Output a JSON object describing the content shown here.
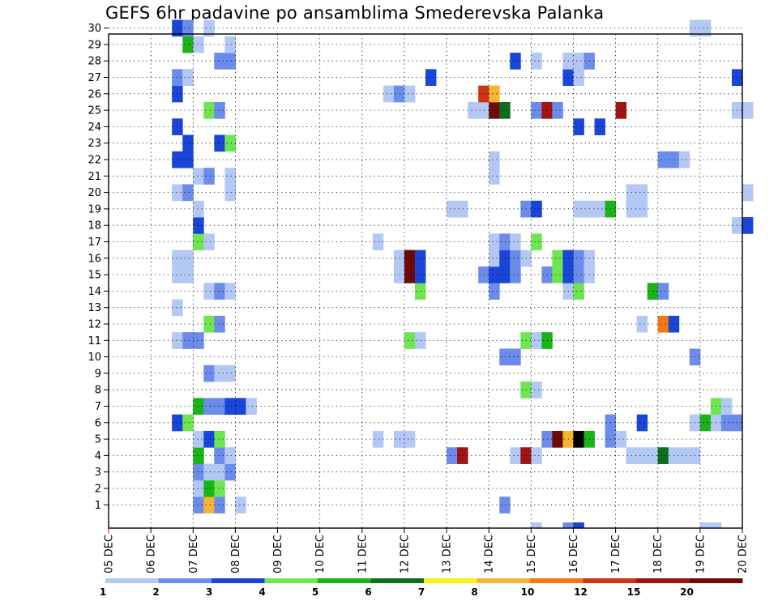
{
  "chart_data": {
    "type": "heatmap",
    "title": "GEFS 6hr padavine po ansamblima Smederevska Palanka",
    "x_tick_labels": [
      "05 DEC",
      "06 DEC",
      "07 DEC",
      "08 DEC",
      "09 DEC",
      "10 DEC",
      "11 DEC",
      "12 DEC",
      "13 DEC",
      "14 DEC",
      "15 DEC",
      "16 DEC",
      "17 DEC",
      "18 DEC",
      "19 DEC",
      "20 DEC"
    ],
    "x_range_days": [
      0,
      15
    ],
    "y_tick_labels": [
      1,
      2,
      3,
      4,
      5,
      6,
      7,
      8,
      9,
      10,
      11,
      12,
      13,
      14,
      15,
      16,
      17,
      18,
      19,
      20,
      21,
      22,
      23,
      24,
      25,
      26,
      27,
      28,
      29,
      30
    ],
    "grid": true,
    "colorbar": {
      "labels": [
        "1",
        "2",
        "3",
        "4",
        "5",
        "6",
        "7",
        "8",
        "10",
        "12",
        "15",
        "20"
      ],
      "colors": [
        "#b4c8f5",
        "#6c8cec",
        "#1a46d8",
        "#6ee650",
        "#18b418",
        "#0a6e1a",
        "#f5f514",
        "#f5b432",
        "#f57814",
        "#d23214",
        "#a01414",
        "#6e0a0a"
      ]
    },
    "cells": [
      [
        1,
        2.0,
        2
      ],
      [
        1,
        2.25,
        8
      ],
      [
        1,
        2.5,
        2
      ],
      [
        1,
        3.0,
        1
      ],
      [
        1,
        9.25,
        2
      ],
      [
        2,
        2.0,
        1
      ],
      [
        2,
        2.25,
        5
      ],
      [
        2,
        2.5,
        4
      ],
      [
        3,
        2.0,
        2
      ],
      [
        3,
        2.25,
        1
      ],
      [
        3,
        2.5,
        1
      ],
      [
        3,
        2.75,
        2
      ],
      [
        4,
        2.0,
        5
      ],
      [
        4,
        2.5,
        2
      ],
      [
        4,
        2.75,
        1
      ],
      [
        4,
        8.0,
        2
      ],
      [
        4,
        8.25,
        11
      ],
      [
        4,
        9.5,
        1
      ],
      [
        4,
        9.75,
        11
      ],
      [
        4,
        10.0,
        1
      ],
      [
        4,
        12.25,
        1
      ],
      [
        4,
        12.5,
        1
      ],
      [
        4,
        12.75,
        1
      ],
      [
        4,
        13.0,
        6
      ],
      [
        4,
        13.25,
        1
      ],
      [
        4,
        13.5,
        1
      ],
      [
        4,
        13.75,
        1
      ],
      [
        5,
        2.0,
        1
      ],
      [
        5,
        2.25,
        3
      ],
      [
        5,
        2.5,
        4
      ],
      [
        5,
        6.25,
        1
      ],
      [
        5,
        6.75,
        1
      ],
      [
        5,
        7.0,
        1
      ],
      [
        5,
        10.25,
        2
      ],
      [
        5,
        10.5,
        12
      ],
      [
        5,
        10.75,
        8
      ],
      [
        5,
        11.0,
        13
      ],
      [
        5,
        11.25,
        5
      ],
      [
        5,
        11.75,
        2
      ],
      [
        5,
        12.0,
        1
      ],
      [
        6,
        1.5,
        3
      ],
      [
        6,
        1.75,
        4
      ],
      [
        6,
        11.75,
        2
      ],
      [
        6,
        12.5,
        3
      ],
      [
        6,
        13.75,
        1
      ],
      [
        6,
        14.0,
        5
      ],
      [
        6,
        14.25,
        1
      ],
      [
        6,
        14.5,
        2
      ],
      [
        6,
        14.75,
        2
      ],
      [
        7,
        2.0,
        5
      ],
      [
        7,
        2.25,
        2
      ],
      [
        7,
        2.5,
        2
      ],
      [
        7,
        2.75,
        3
      ],
      [
        7,
        3.0,
        3
      ],
      [
        7,
        3.25,
        1
      ],
      [
        7,
        14.25,
        4
      ],
      [
        7,
        14.5,
        1
      ],
      [
        8,
        9.75,
        4
      ],
      [
        8,
        10.0,
        1
      ],
      [
        9,
        2.25,
        2
      ],
      [
        9,
        2.5,
        1
      ],
      [
        9,
        2.75,
        1
      ],
      [
        10,
        9.25,
        2
      ],
      [
        10,
        9.5,
        2
      ],
      [
        10,
        13.75,
        2
      ],
      [
        11,
        1.5,
        1
      ],
      [
        11,
        1.75,
        2
      ],
      [
        11,
        2.0,
        2
      ],
      [
        11,
        7.0,
        4
      ],
      [
        11,
        7.25,
        1
      ],
      [
        11,
        9.75,
        4
      ],
      [
        11,
        10.0,
        1
      ],
      [
        11,
        10.25,
        5
      ],
      [
        12,
        2.25,
        4
      ],
      [
        12,
        2.5,
        2
      ],
      [
        12,
        12.5,
        1
      ],
      [
        12,
        13.0,
        9
      ],
      [
        12,
        13.25,
        3
      ],
      [
        13,
        1.5,
        1
      ],
      [
        14,
        2.25,
        1
      ],
      [
        14,
        2.5,
        2
      ],
      [
        14,
        2.75,
        1
      ],
      [
        14,
        7.25,
        4
      ],
      [
        14,
        9.0,
        2
      ],
      [
        14,
        10.75,
        1
      ],
      [
        14,
        11.0,
        4
      ],
      [
        14,
        12.75,
        5
      ],
      [
        14,
        13.0,
        2
      ],
      [
        15,
        1.5,
        1
      ],
      [
        15,
        1.75,
        1
      ],
      [
        15,
        6.75,
        1
      ],
      [
        15,
        7.0,
        12
      ],
      [
        15,
        7.25,
        3
      ],
      [
        15,
        8.75,
        2
      ],
      [
        15,
        9.0,
        3
      ],
      [
        15,
        9.25,
        3
      ],
      [
        15,
        9.5,
        2
      ],
      [
        15,
        10.25,
        2
      ],
      [
        15,
        10.5,
        4
      ],
      [
        15,
        10.75,
        3
      ],
      [
        15,
        11.0,
        2
      ],
      [
        15,
        11.25,
        1
      ],
      [
        16,
        1.5,
        1
      ],
      [
        16,
        1.75,
        1
      ],
      [
        16,
        6.75,
        1
      ],
      [
        16,
        7.0,
        12
      ],
      [
        16,
        7.25,
        3
      ],
      [
        16,
        9.0,
        1
      ],
      [
        16,
        9.25,
        3
      ],
      [
        16,
        9.5,
        2
      ],
      [
        16,
        9.75,
        1
      ],
      [
        16,
        10.5,
        4
      ],
      [
        16,
        10.75,
        3
      ],
      [
        16,
        11.0,
        2
      ],
      [
        16,
        11.25,
        1
      ],
      [
        17,
        2.0,
        4
      ],
      [
        17,
        2.25,
        1
      ],
      [
        17,
        6.25,
        1
      ],
      [
        17,
        9.0,
        1
      ],
      [
        17,
        9.25,
        2
      ],
      [
        17,
        9.5,
        1
      ],
      [
        17,
        10.0,
        4
      ],
      [
        18,
        2.0,
        3
      ],
      [
        18,
        14.75,
        1
      ],
      [
        18,
        15.0,
        3
      ],
      [
        19,
        2.0,
        1
      ],
      [
        19,
        8.0,
        1
      ],
      [
        19,
        8.25,
        1
      ],
      [
        19,
        9.75,
        2
      ],
      [
        19,
        10.0,
        3
      ],
      [
        19,
        11.0,
        1
      ],
      [
        19,
        11.25,
        1
      ],
      [
        19,
        11.5,
        1
      ],
      [
        19,
        11.75,
        5
      ],
      [
        19,
        12.25,
        1
      ],
      [
        19,
        12.5,
        1
      ],
      [
        20,
        1.5,
        1
      ],
      [
        20,
        1.75,
        2
      ],
      [
        20,
        2.75,
        1
      ],
      [
        20,
        12.25,
        1
      ],
      [
        20,
        12.5,
        1
      ],
      [
        20,
        15.0,
        1
      ],
      [
        21,
        2.0,
        1
      ],
      [
        21,
        2.25,
        2
      ],
      [
        21,
        2.75,
        1
      ],
      [
        21,
        9.0,
        1
      ],
      [
        22,
        1.5,
        3
      ],
      [
        22,
        1.75,
        3
      ],
      [
        22,
        9.0,
        1
      ],
      [
        22,
        13.0,
        2
      ],
      [
        22,
        13.25,
        2
      ],
      [
        22,
        13.5,
        1
      ],
      [
        23,
        1.75,
        3
      ],
      [
        23,
        2.5,
        3
      ],
      [
        23,
        2.75,
        4
      ],
      [
        24,
        1.5,
        3
      ],
      [
        24,
        11.0,
        3
      ],
      [
        24,
        11.5,
        3
      ],
      [
        25,
        2.25,
        4
      ],
      [
        25,
        2.5,
        2
      ],
      [
        25,
        8.5,
        1
      ],
      [
        25,
        8.75,
        1
      ],
      [
        25,
        9.0,
        12
      ],
      [
        25,
        9.25,
        6
      ],
      [
        25,
        10.0,
        2
      ],
      [
        25,
        10.25,
        11
      ],
      [
        25,
        10.5,
        2
      ],
      [
        25,
        12.0,
        11
      ],
      [
        25,
        14.75,
        1
      ],
      [
        25,
        15.0,
        1
      ],
      [
        26,
        1.5,
        3
      ],
      [
        26,
        6.5,
        1
      ],
      [
        26,
        6.75,
        2
      ],
      [
        26,
        7.0,
        1
      ],
      [
        26,
        8.75,
        10
      ],
      [
        26,
        9.0,
        8
      ],
      [
        27,
        1.5,
        2
      ],
      [
        27,
        1.75,
        1
      ],
      [
        27,
        7.5,
        3
      ],
      [
        27,
        10.75,
        3
      ],
      [
        27,
        11.0,
        1
      ],
      [
        27,
        14.75,
        3
      ],
      [
        28,
        2.5,
        2
      ],
      [
        28,
        2.75,
        2
      ],
      [
        28,
        9.5,
        3
      ],
      [
        28,
        10.0,
        1
      ],
      [
        28,
        10.75,
        1
      ],
      [
        28,
        11.0,
        1
      ],
      [
        28,
        11.25,
        2
      ],
      [
        29,
        1.75,
        5
      ],
      [
        29,
        2.0,
        1
      ],
      [
        29,
        2.75,
        1
      ],
      [
        30,
        1.5,
        3
      ],
      [
        30,
        1.75,
        2
      ],
      [
        30,
        2.25,
        1
      ],
      [
        30,
        13.75,
        1
      ],
      [
        30,
        14.0,
        1
      ]
    ],
    "partial_cells_below_row1": [
      [
        10.0,
        1
      ],
      [
        10.75,
        2
      ],
      [
        11.0,
        3
      ],
      [
        14.0,
        1
      ],
      [
        14.25,
        1
      ]
    ]
  }
}
